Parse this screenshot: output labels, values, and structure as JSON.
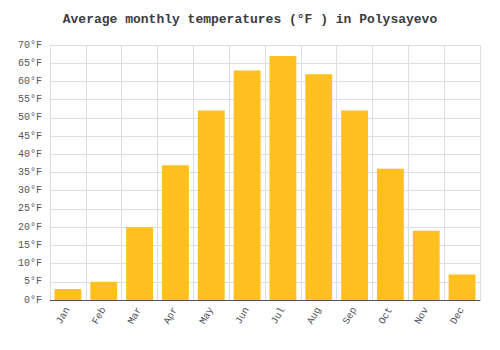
{
  "chart_data": {
    "type": "bar",
    "title": "Average monthly temperatures (°F ) in Polysayevo",
    "categories": [
      "Jan",
      "Feb",
      "Mar",
      "Apr",
      "May",
      "Jun",
      "Jul",
      "Aug",
      "Sep",
      "Oct",
      "Nov",
      "Dec"
    ],
    "values": [
      3,
      5,
      20,
      37,
      52,
      63,
      67,
      62,
      52,
      36,
      19,
      7
    ],
    "color": "#FFC020",
    "ylim": [
      0,
      70
    ],
    "yticks": [
      {
        "value": 0,
        "label": "0°F"
      },
      {
        "value": 5,
        "label": "5°F"
      },
      {
        "value": 10,
        "label": "10°F"
      },
      {
        "value": 15,
        "label": "15°F"
      },
      {
        "value": 20,
        "label": "20°F"
      },
      {
        "value": 25,
        "label": "25°F"
      },
      {
        "value": 30,
        "label": "30°F"
      },
      {
        "value": 35,
        "label": "35°F"
      },
      {
        "value": 40,
        "label": "40°F"
      },
      {
        "value": 45,
        "label": "45°F"
      },
      {
        "value": 50,
        "label": "50°F"
      },
      {
        "value": 55,
        "label": "55°F"
      },
      {
        "value": 60,
        "label": "60°F"
      },
      {
        "value": 65,
        "label": "65°F"
      },
      {
        "value": 70,
        "label": "70°F"
      }
    ],
    "grid": true
  }
}
